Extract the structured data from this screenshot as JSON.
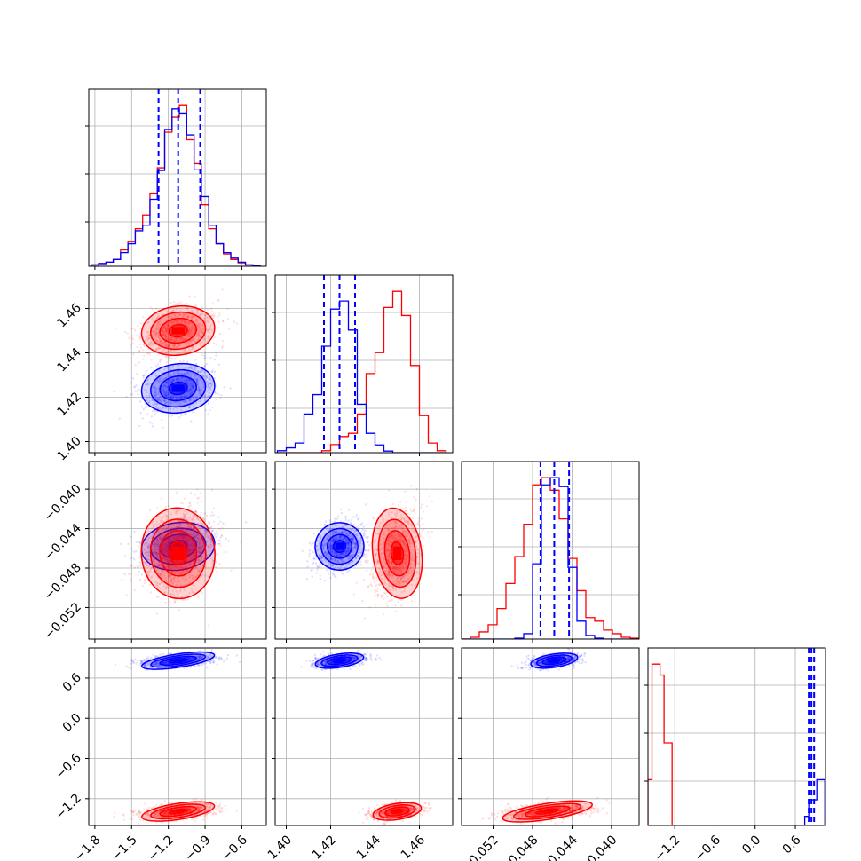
{
  "chart_data": {
    "type": "scatter",
    "subtype": "corner-plot",
    "title": "",
    "grid": true,
    "legend": "none",
    "colors": {
      "series_a": "#0000ff",
      "series_b": "#ff0000",
      "grid": "#b0b0b0"
    },
    "parameters": [
      {
        "range": [
          -1.85,
          -0.4
        ],
        "ticks": [
          -1.8,
          -1.5,
          -1.2,
          -0.9,
          -0.6
        ],
        "tick_labels": [
          "−1.8",
          "−1.5",
          "−1.2",
          "−0.9",
          "−0.6"
        ]
      },
      {
        "range": [
          1.395,
          1.475
        ],
        "ticks": [
          1.4,
          1.42,
          1.44,
          1.46
        ],
        "tick_labels": [
          "1.40",
          "1.42",
          "1.44",
          "1.46"
        ]
      },
      {
        "range": [
          -0.0552,
          -0.0372
        ],
        "ticks": [
          -0.052,
          -0.048,
          -0.044,
          -0.04
        ],
        "tick_labels": [
          "−0.052",
          "−0.048",
          "−0.044",
          "−0.040"
        ]
      },
      {
        "range": [
          -1.6,
          1.05
        ],
        "ticks": [
          -1.2,
          -0.6,
          0.0,
          0.6
        ],
        "tick_labels": [
          "−1.2",
          "−0.6",
          "0.0",
          "0.6"
        ]
      }
    ],
    "series": [
      {
        "color": "#0000ff",
        "mean": [
          -1.12,
          1.424,
          -0.0458,
          0.86
        ],
        "sd": [
          0.15,
          0.0055,
          0.0012,
          0.05
        ],
        "quantiles": [
          [
            -1.28,
            -1.12,
            -0.94
          ],
          [
            1.417,
            1.424,
            1.431
          ],
          [
            -0.0472,
            -0.0458,
            -0.0443
          ],
          [
            0.8,
            0.84,
            0.88
          ]
        ]
      },
      {
        "color": "#ff0000",
        "mean": [
          -1.12,
          1.45,
          -0.0465,
          -1.39
        ],
        "sd": [
          0.15,
          0.0055,
          0.0023,
          0.06
        ],
        "quantiles": []
      }
    ],
    "hist_1d": {
      "p0": {
        "edges": [
          -1.83,
          -1.77,
          -1.71,
          -1.65,
          -1.59,
          -1.53,
          -1.47,
          -1.41,
          -1.35,
          -1.29,
          -1.23,
          -1.17,
          -1.11,
          -1.05,
          -0.99,
          -0.93,
          -0.87,
          -0.81,
          -0.75,
          -0.69,
          -0.63,
          -0.57,
          -0.51,
          -0.45
        ],
        "blue": [
          2,
          4,
          6,
          10,
          20,
          33,
          52,
          60,
          98,
          140,
          200,
          230,
          224,
          192,
          141,
          102,
          60,
          33,
          20,
          12,
          6,
          2,
          1
        ],
        "red": [
          2,
          4,
          6,
          10,
          24,
          36,
          55,
          75,
          107,
          144,
          196,
          218,
          236,
          185,
          150,
          90,
          55,
          33,
          18,
          10,
          5,
          2,
          1
        ]
      },
      "p1": {
        "edges": [
          1.396,
          1.4,
          1.404,
          1.408,
          1.412,
          1.416,
          1.42,
          1.424,
          1.428,
          1.432,
          1.436,
          1.44,
          1.444,
          1.448,
          1.452,
          1.456,
          1.46,
          1.464,
          1.468,
          1.472
        ],
        "blue": [
          0.012,
          0.03,
          0.06,
          0.24,
          0.36,
          0.66,
          0.89,
          0.94,
          0.76,
          0.3,
          0.12,
          0.048,
          0.01,
          0.0,
          0.0,
          0.0,
          0.0,
          0.0,
          0.0
        ],
        "red": [
          0.0,
          0.0,
          0.0,
          0.0,
          0.0,
          0.012,
          0.05,
          0.1,
          0.12,
          0.24,
          0.49,
          0.62,
          0.9,
          1.0,
          0.85,
          0.54,
          0.23,
          0.06,
          0.012
        ]
      },
      "p2": {
        "edges": [
          -0.0552,
          -0.0543,
          -0.0534,
          -0.0525,
          -0.0516,
          -0.0507,
          -0.0498,
          -0.0489,
          -0.048,
          -0.0471,
          -0.0462,
          -0.0453,
          -0.0444,
          -0.0435,
          -0.0426,
          -0.0417,
          -0.0408,
          -0.0399,
          -0.039,
          -0.0381,
          -0.0372
        ],
        "blue": [
          0.0,
          0.0,
          0.0,
          0.0,
          0.0,
          0.0,
          0.005,
          0.03,
          0.42,
          0.86,
          0.9,
          0.85,
          0.4,
          0.1,
          0.02,
          0.005,
          0.0,
          0.0,
          0.0,
          0.0
        ],
        "red": [
          0.0,
          0.01,
          0.04,
          0.08,
          0.17,
          0.31,
          0.46,
          0.64,
          0.86,
          0.9,
          0.83,
          0.67,
          0.45,
          0.27,
          0.12,
          0.1,
          0.05,
          0.03,
          0.01,
          0.005
        ]
      },
      "p3": {
        "edges": [
          -1.6,
          -1.54,
          -1.48,
          -1.42,
          -1.36,
          -1.3,
          -1.24,
          -1.18,
          -1.12,
          -1.06,
          -1.0,
          -0.94,
          -0.88,
          -0.82,
          -0.76,
          -0.7,
          -0.64,
          -0.58,
          -0.52,
          -0.46,
          -0.4,
          -0.34,
          -0.28,
          -0.22,
          -0.16,
          -0.1,
          -0.04,
          0.02,
          0.08,
          0.14,
          0.2,
          0.26,
          0.32,
          0.38,
          0.44,
          0.5,
          0.56,
          0.62,
          0.68,
          0.74,
          0.8,
          0.86,
          0.92,
          0.98,
          1.04
        ],
        "blue": [
          0,
          0,
          0,
          0,
          0,
          0,
          0,
          0,
          0,
          0,
          0,
          0,
          0,
          0,
          0,
          0,
          0,
          0,
          0,
          0,
          0,
          0,
          0,
          0,
          0,
          0,
          0,
          0,
          0,
          0,
          0,
          0,
          0,
          0,
          0,
          0,
          0,
          0,
          0,
          0.05,
          0.14,
          0.14,
          0.25,
          0.25
        ],
        "red": [
          0.25,
          0.88,
          0.88,
          0.82,
          0.45,
          0.45,
          0.0,
          0,
          0,
          0,
          0,
          0,
          0,
          0,
          0,
          0,
          0,
          0,
          0,
          0,
          0,
          0,
          0,
          0,
          0,
          0,
          0,
          0,
          0,
          0,
          0,
          0,
          0,
          0,
          0,
          0,
          0,
          0,
          0,
          0,
          0,
          0,
          0,
          0
        ]
      }
    }
  }
}
